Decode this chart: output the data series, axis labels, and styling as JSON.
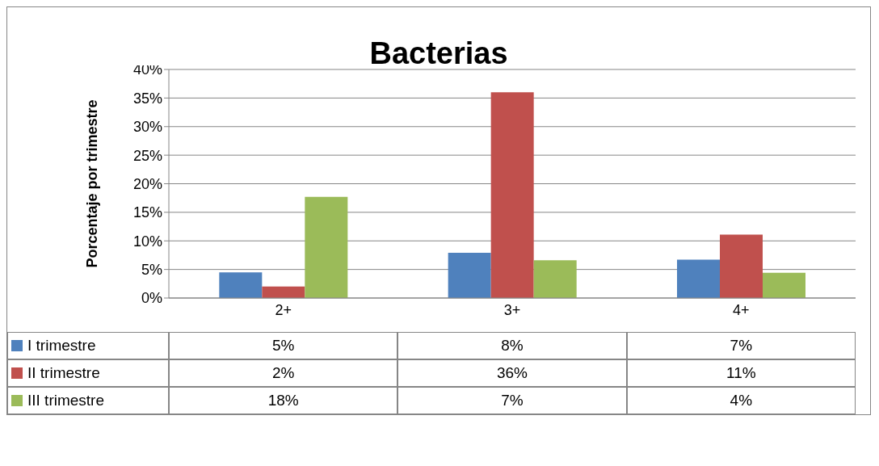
{
  "chart_data": {
    "type": "bar",
    "title": "Bacterias",
    "ylabel": "Porcentaje por trimestre",
    "categories": [
      "2+",
      "3+",
      "4+"
    ],
    "series": [
      {
        "name": "I trimestre",
        "color": "#4f81bd",
        "values": [
          4.5,
          7.9,
          6.7
        ],
        "value_labels": [
          "5%",
          "8%",
          "7%"
        ]
      },
      {
        "name": "II trimestre",
        "color": "#c0504d",
        "values": [
          2,
          36,
          11.1
        ],
        "value_labels": [
          "2%",
          "36%",
          "11%"
        ]
      },
      {
        "name": "III trimestre",
        "color": "#9bbb59",
        "values": [
          17.7,
          6.6,
          4.4
        ],
        "value_labels": [
          "18%",
          "7%",
          "4%"
        ]
      }
    ],
    "ylim": [
      0,
      40
    ],
    "yticks": [
      {
        "value": 0,
        "label": "0%"
      },
      {
        "value": 5,
        "label": "5%"
      },
      {
        "value": 10,
        "label": "10%"
      },
      {
        "value": 15,
        "label": "15%"
      },
      {
        "value": 20,
        "label": "20%"
      },
      {
        "value": 25,
        "label": "25%"
      },
      {
        "value": 30,
        "label": "30%"
      },
      {
        "value": 35,
        "label": "35%"
      },
      {
        "value": 40,
        "label": "40%"
      }
    ],
    "grid": "y",
    "legend": "bottom"
  }
}
